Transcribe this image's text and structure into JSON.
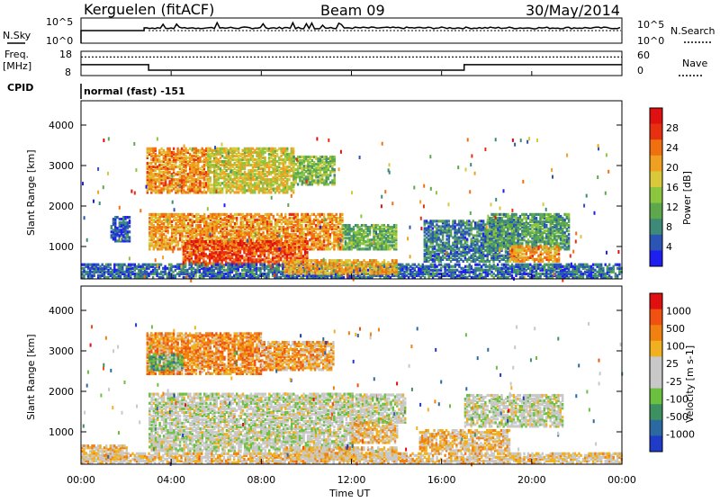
{
  "header": {
    "station": "Kerguelen (fitACF)",
    "beam": "Beam 09",
    "date": "30/May/2014"
  },
  "noise_panel": {
    "left_label": "N.Sky",
    "right_label": "N.Search",
    "left_ticks": [
      "10^5",
      "10^0"
    ],
    "right_ticks": [
      "10^5",
      "10^0"
    ]
  },
  "freq_panel": {
    "left_label_1": "Freq.",
    "left_label_2": "[MHz]",
    "left_ticks": [
      "18",
      "8"
    ],
    "right_ticks": [
      "60",
      "0"
    ],
    "right_label": "Nave",
    "cpid_label": "CPID",
    "cpid_value": "normal (fast) -151",
    "freq_steps": [
      {
        "start_h": 0,
        "end_h": 3,
        "freq_mhz": 12.5
      },
      {
        "start_h": 3,
        "end_h": 17,
        "freq_mhz": 10.2
      },
      {
        "start_h": 17,
        "end_h": 24,
        "freq_mhz": 12.5
      }
    ],
    "nave_level": 46
  },
  "time_axis": {
    "title": "Time UT",
    "ticks": [
      "00:00",
      "04:00",
      "08:00",
      "12:00",
      "16:00",
      "20:00",
      "00:00"
    ]
  },
  "chart_data": [
    {
      "type": "heatmap",
      "name": "power",
      "ylabel": "Slant Range [km]",
      "yticks": [
        "1000",
        "2000",
        "3000",
        "4000"
      ],
      "ylim": [
        200,
        4600
      ],
      "xlim": [
        0,
        24
      ],
      "colorbar_label": "Power [dB]",
      "colorbar_ticks": [
        "4",
        "8",
        "12",
        "16",
        "20",
        "24",
        "28"
      ],
      "colorscale": [
        "#1e1ef0",
        "#2a55b4",
        "#3d8a78",
        "#5ca84a",
        "#8cc63f",
        "#d8c83a",
        "#f0a020",
        "#f07010",
        "#e83010",
        "#e01010"
      ],
      "regions": [
        {
          "t0": 2.9,
          "t1": 5.6,
          "r0": 2300,
          "r1": 3400,
          "val": 0.72
        },
        {
          "t0": 5.6,
          "t1": 9.4,
          "r0": 2300,
          "r1": 3400,
          "val": 0.55
        },
        {
          "t0": 9.4,
          "t1": 11.2,
          "r0": 2500,
          "r1": 3200,
          "val": 0.4
        },
        {
          "t0": 3.0,
          "t1": 11.6,
          "r0": 900,
          "r1": 1800,
          "val": 0.7
        },
        {
          "t0": 4.5,
          "t1": 10.0,
          "r0": 500,
          "r1": 1100,
          "val": 0.85
        },
        {
          "t0": 11.6,
          "t1": 14.0,
          "r0": 900,
          "r1": 1500,
          "val": 0.35
        },
        {
          "t0": 15.2,
          "t1": 19.4,
          "r0": 600,
          "r1": 1600,
          "val": 0.2
        },
        {
          "t0": 18.0,
          "t1": 21.6,
          "r0": 900,
          "r1": 1800,
          "val": 0.3
        },
        {
          "t0": 19.0,
          "t1": 21.2,
          "r0": 600,
          "r1": 1000,
          "val": 0.7
        },
        {
          "t0": 0.0,
          "t1": 24.0,
          "r0": 200,
          "r1": 550,
          "val": 0.15
        },
        {
          "t0": 1.3,
          "t1": 2.2,
          "r0": 1100,
          "r1": 1700,
          "val": 0.1
        },
        {
          "t0": 9.0,
          "t1": 14.0,
          "r0": 300,
          "r1": 650,
          "val": 0.65
        }
      ]
    },
    {
      "type": "heatmap",
      "name": "velocity",
      "ylabel": "Slant Range [km]",
      "yticks": [
        "1000",
        "2000",
        "3000",
        "4000"
      ],
      "ylim": [
        200,
        4600
      ],
      "xlim": [
        0,
        24
      ],
      "colorbar_label": "Velocity [m s-1]",
      "colorbar_ticks": [
        "1000",
        "500",
        "100",
        "25",
        "-25",
        "-100",
        "-500",
        "-1000"
      ],
      "colorscale": [
        "#1e3cc8",
        "#2a6aa0",
        "#3d9060",
        "#6cc040",
        "#c8c8c8",
        "#c8c8c8",
        "#f0b020",
        "#f08010",
        "#f05010",
        "#e01010"
      ],
      "regions": [
        {
          "t0": 2.9,
          "t1": 8.0,
          "r0": 2400,
          "r1": 3400,
          "val": 0.75
        },
        {
          "t0": 8.0,
          "t1": 11.2,
          "r0": 2500,
          "r1": 3200,
          "val": 0.7
        },
        {
          "t0": 3.0,
          "t1": 4.5,
          "r0": 2500,
          "r1": 2900,
          "val": 0.3
        },
        {
          "t0": 3.0,
          "t1": 12.0,
          "r0": 500,
          "r1": 1900,
          "val": 0.48
        },
        {
          "t0": 12.0,
          "t1": 14.0,
          "r0": 700,
          "r1": 1300,
          "val": 0.62
        },
        {
          "t0": 12.0,
          "t1": 14.4,
          "r0": 1200,
          "r1": 1900,
          "val": 0.48
        },
        {
          "t0": 17.0,
          "t1": 21.4,
          "r0": 1100,
          "r1": 1900,
          "val": 0.48
        },
        {
          "t0": 15.0,
          "t1": 19.0,
          "r0": 500,
          "r1": 1000,
          "val": 0.65
        },
        {
          "t0": 0.0,
          "t1": 24.0,
          "r0": 200,
          "r1": 450,
          "val": 0.6
        },
        {
          "t0": 9.0,
          "t1": 14.0,
          "r0": 300,
          "r1": 600,
          "val": 0.6
        },
        {
          "t0": 0.0,
          "t1": 2.0,
          "r0": 300,
          "r1": 650,
          "val": 0.62
        }
      ]
    }
  ]
}
